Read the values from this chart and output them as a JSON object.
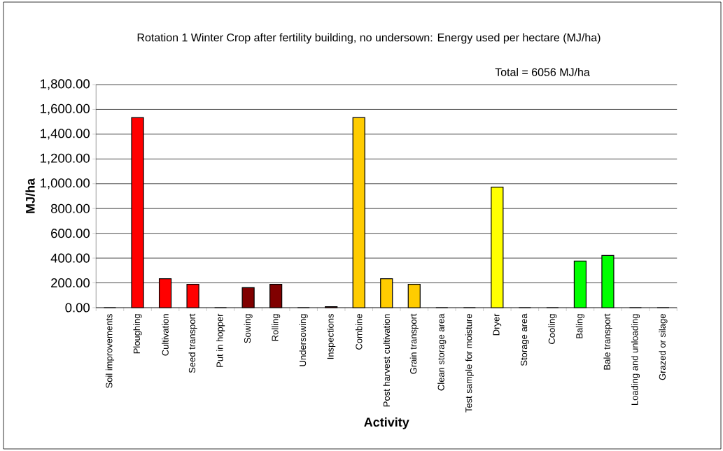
{
  "chart_data": {
    "type": "bar",
    "title": "Rotation 1 Winter Crop after fertility building, no undersown: Energy used per hectare (MJ/ha)",
    "xlabel": "Activity",
    "ylabel": "MJ/ha",
    "annotations": [
      "Total = 6056 MJ/ha"
    ],
    "categories": [
      "Soil improvements",
      "Ploughing",
      "Cultivation",
      "Seed transport",
      "Put in hopper",
      "Sowing",
      "Rolling",
      "Undersowing",
      "Inspections",
      "Combine",
      "Post harvest cultivation",
      "Grain transport",
      "Clean storage area",
      "Test sample for moisture",
      "Dryer",
      "Storage area",
      "Cooling",
      "Baling",
      "Bale transport",
      "Loading and unloading",
      "Grazed or silage"
    ],
    "values": [
      0,
      1534,
      233,
      188,
      0,
      161,
      188,
      0,
      8,
      1534,
      233,
      188,
      0,
      0,
      973,
      0,
      0,
      376,
      421,
      0,
      0
    ],
    "colors": [
      "#ff0000",
      "#ff0000",
      "#ff0000",
      "#ff0000",
      "#800000",
      "#800000",
      "#800000",
      "#800000",
      "#800000",
      "#ffcc00",
      "#ffcc00",
      "#ffcc00",
      "#ffff00",
      "#ffff00",
      "#ffff00",
      "#ffff00",
      "#00ff00",
      "#00ff00",
      "#00ff00",
      "#00ff00",
      "#00ff00"
    ],
    "ylim": [
      0,
      1800
    ],
    "yticks": [
      {
        "value": 0,
        "label": "0.00"
      },
      {
        "value": 200,
        "label": "200.00"
      },
      {
        "value": 400,
        "label": "400.00"
      },
      {
        "value": 600,
        "label": "600.00"
      },
      {
        "value": 800,
        "label": "800.00"
      },
      {
        "value": 1000,
        "label": "1,000.00"
      },
      {
        "value": 1200,
        "label": "1,200.00"
      },
      {
        "value": 1400,
        "label": "1,400.00"
      },
      {
        "value": 1600,
        "label": "1,600.00"
      },
      {
        "value": 1800,
        "label": "1,800.00"
      }
    ],
    "grid": "y"
  }
}
